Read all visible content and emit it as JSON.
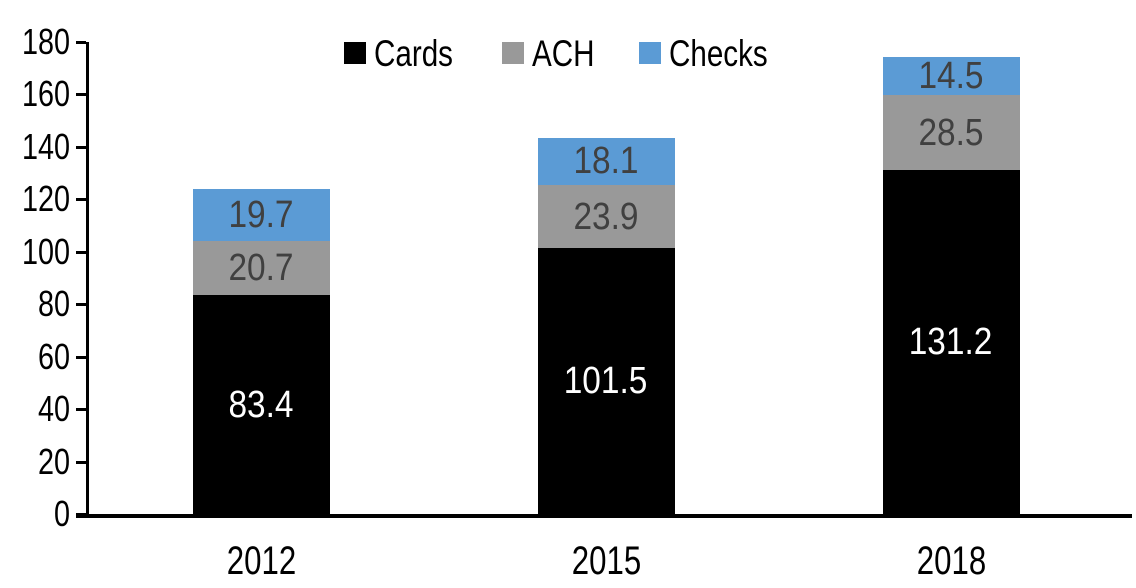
{
  "chart_data": {
    "type": "bar",
    "stacked": true,
    "categories": [
      "2012",
      "2015",
      "2018"
    ],
    "series": [
      {
        "name": "Cards",
        "color": "#000000",
        "label_color": "#ffffff",
        "values": [
          83.4,
          101.5,
          131.2
        ]
      },
      {
        "name": "ACH",
        "color": "#999999",
        "label_color": "#404040",
        "values": [
          20.7,
          23.9,
          28.5
        ]
      },
      {
        "name": "Checks",
        "color": "#5B9BD5",
        "label_color": "#404040",
        "values": [
          19.7,
          18.1,
          14.5
        ]
      }
    ],
    "title": "",
    "xlabel": "",
    "ylabel": "",
    "ylim": [
      0,
      180
    ],
    "ytick_step": 20,
    "yticks": [
      0,
      20,
      40,
      60,
      80,
      100,
      120,
      140,
      160,
      180
    ],
    "legend_position": "top",
    "grid": false,
    "axis_color": "#000000",
    "background_color": "#ffffff"
  }
}
